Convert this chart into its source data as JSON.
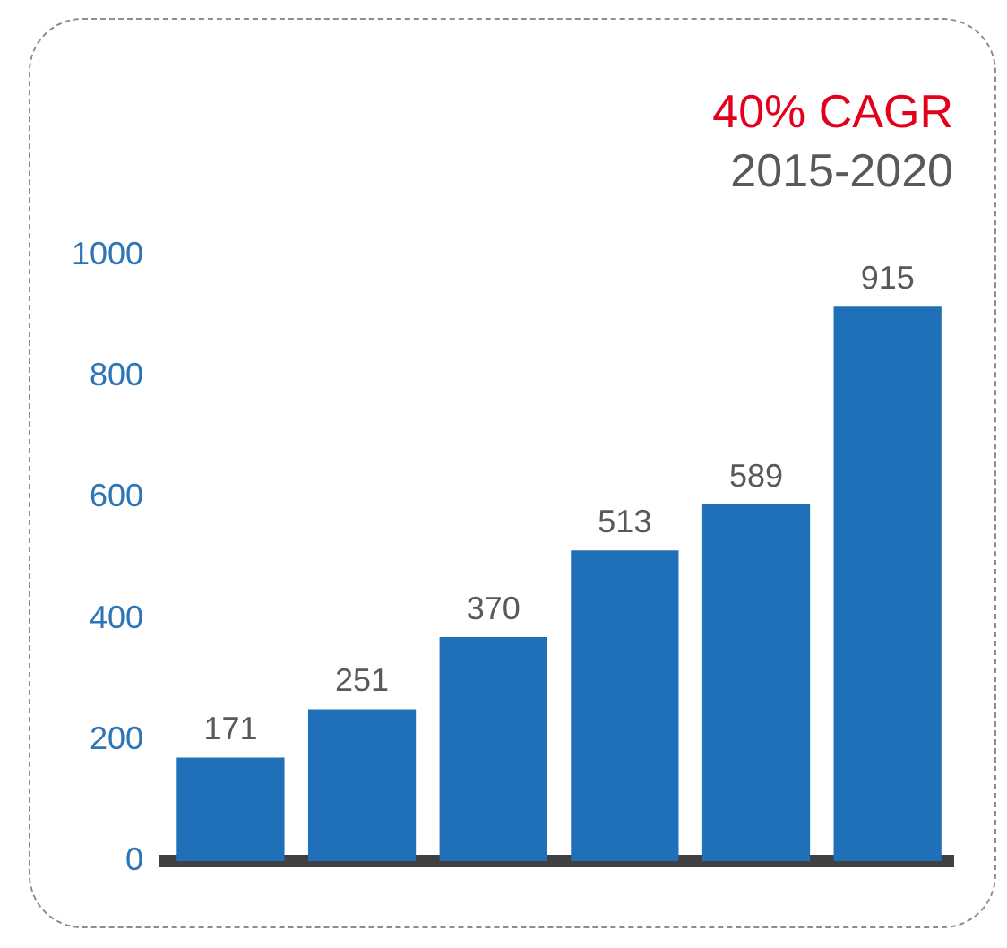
{
  "chart_data": {
    "type": "bar",
    "title": "40% CAGR",
    "subtitle": "2015-2020",
    "categories": [
      null,
      null,
      null,
      null,
      null,
      null
    ],
    "series": [
      {
        "color": "#1f70b8",
        "values": [
          171,
          251,
          370,
          513,
          589,
          915
        ]
      }
    ],
    "ylim": [
      0,
      1000
    ],
    "yticks": [
      0,
      200,
      400,
      600,
      800,
      1000
    ],
    "data_labels": true,
    "grid": false,
    "legend": false
  }
}
